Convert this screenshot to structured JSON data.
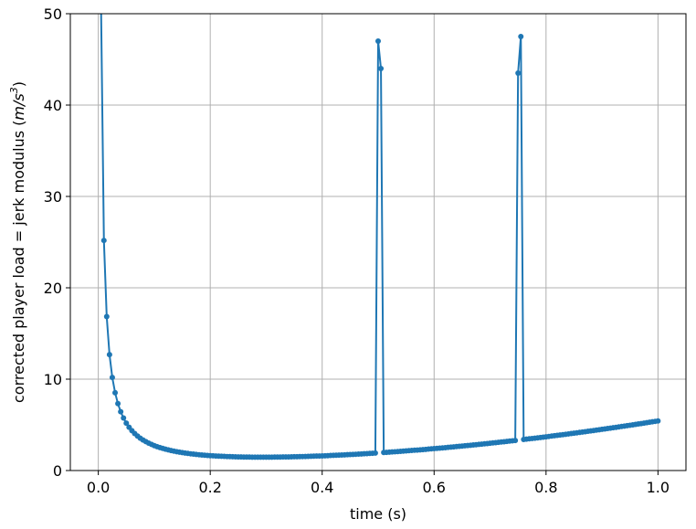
{
  "chart_data": {
    "type": "line",
    "xlabel": "time (s)",
    "ylabel_prefix": "corrected player load = jerk modulus (",
    "ylabel_unit_base": "m/s",
    "ylabel_unit_exp": "3",
    "ylabel_suffix": ")",
    "xlim": [
      -0.05,
      1.05
    ],
    "ylim": [
      0,
      50
    ],
    "xticks": [
      0.0,
      0.2,
      0.4,
      0.6,
      0.8,
      1.0
    ],
    "xtick_labels": [
      "0.0",
      "0.2",
      "0.4",
      "0.6",
      "0.8",
      "1.0"
    ],
    "yticks": [
      0,
      10,
      20,
      30,
      40,
      50
    ],
    "ytick_labels": [
      "0",
      "10",
      "20",
      "30",
      "40",
      "50"
    ],
    "grid": true,
    "series_color": "#1f77b4",
    "marker": "circle",
    "x_step": 0.005,
    "x_range": [
      0.0,
      1.0
    ],
    "curve_form": "a/x + b + c*x^2 (approx. fit to the drawn markers)",
    "curve_params": {
      "a": 0.25,
      "b": 0.18,
      "c": 5.0
    },
    "spikes": [
      {
        "x": 0.5,
        "y": 47.0
      },
      {
        "x": 0.505,
        "y": 44.0
      },
      {
        "x": 0.75,
        "y": 43.5
      },
      {
        "x": 0.755,
        "y": 47.5
      }
    ]
  }
}
